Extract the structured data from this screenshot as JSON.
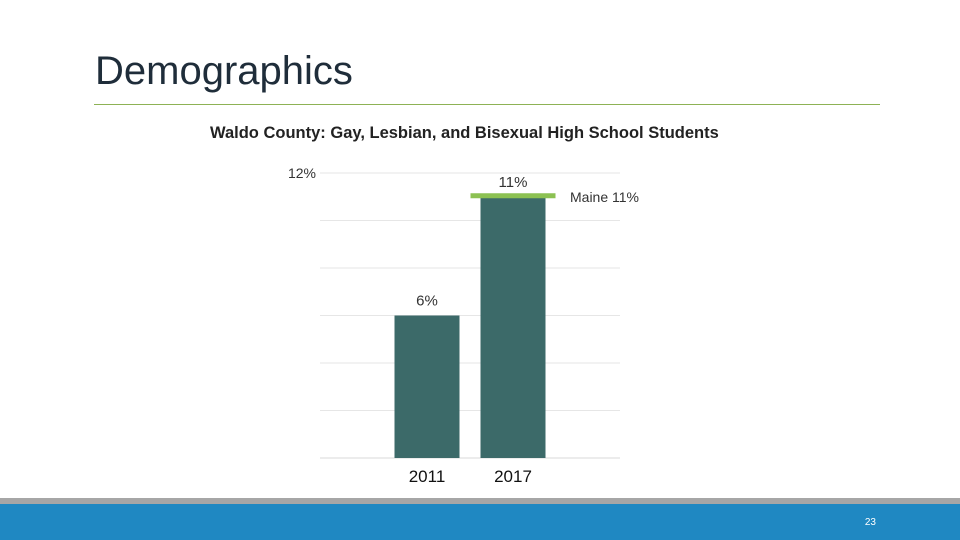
{
  "slide": {
    "title": "Demographics",
    "page_number": "23"
  },
  "chart_data": {
    "type": "bar",
    "title": "Waldo County: Gay, Lesbian, and Bisexual High School Students",
    "categories": [
      "2011",
      "2017"
    ],
    "values": [
      6,
      11
    ],
    "data_labels": [
      "6%",
      "11%"
    ],
    "ylim": [
      0,
      12
    ],
    "y_tick_label": "12%",
    "grid": true,
    "bar_color": "#3c6a69",
    "reference_line": {
      "label": "Maine 11%",
      "value": 11,
      "color": "#8cc152"
    }
  }
}
